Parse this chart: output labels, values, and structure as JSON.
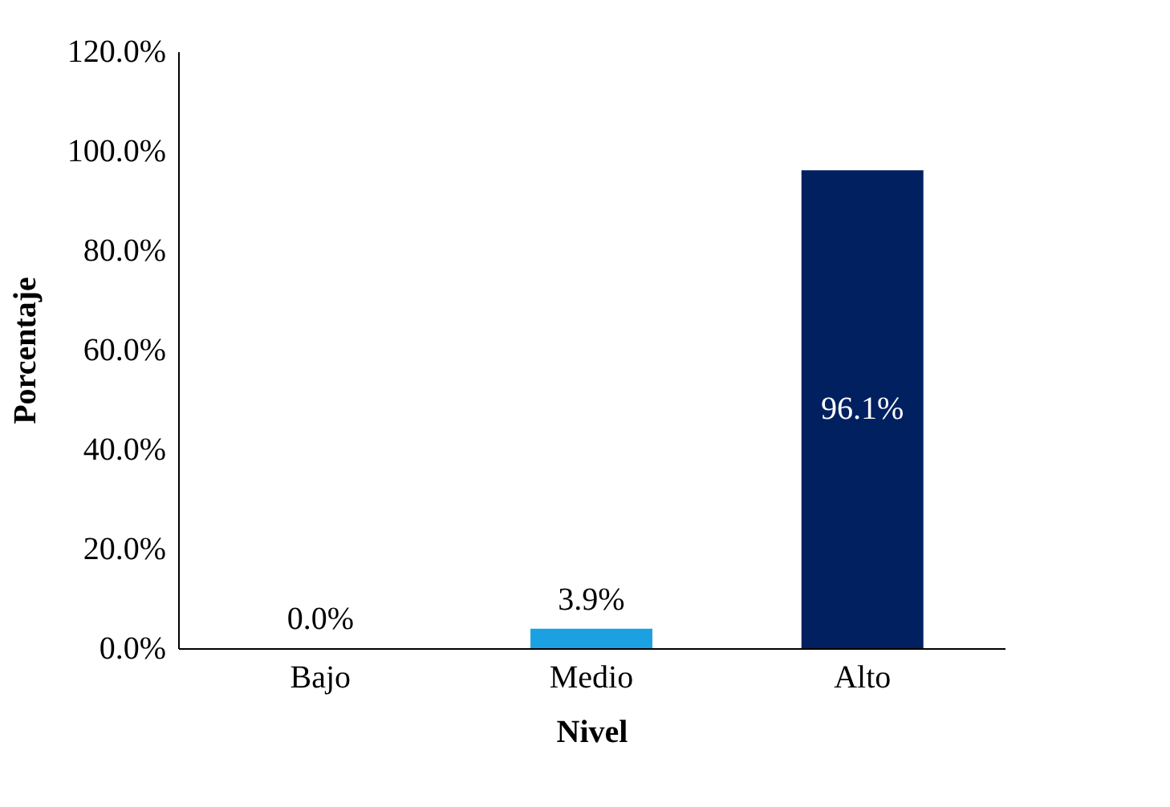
{
  "chart_data": {
    "type": "bar",
    "xlabel": "Nivel",
    "ylabel": "Porcentaje",
    "categories": [
      "Bajo",
      "Medio",
      "Alto"
    ],
    "values": [
      0.0,
      3.9,
      96.1
    ],
    "colors": [
      "#00b0f0",
      "#1ba1e2",
      "#002060"
    ],
    "value_labels": [
      "0.0%",
      "3.9%",
      "96.1%"
    ],
    "ylim": [
      0,
      120
    ],
    "yticks": [
      {
        "value": 0,
        "label": "0.0%"
      },
      {
        "value": 20,
        "label": "20.0%"
      },
      {
        "value": 40,
        "label": "40.0%"
      },
      {
        "value": 60,
        "label": "60.0%"
      },
      {
        "value": 80,
        "label": "80.0%"
      },
      {
        "value": 100,
        "label": "100.0%"
      },
      {
        "value": 120,
        "label": "120.0%"
      }
    ],
    "grid": false
  }
}
